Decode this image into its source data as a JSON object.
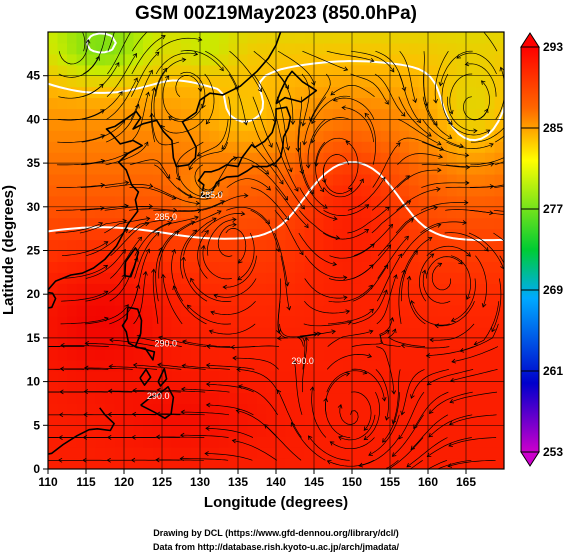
{
  "chart_data": {
    "type": "heatmap",
    "title": "GSM 00Z19May2023 (850.0hPa)",
    "xlabel": "Longitude (degrees)",
    "ylabel": "Latitude (degrees)",
    "xlim": [
      110,
      170
    ],
    "ylim": [
      0,
      50
    ],
    "xticks": [
      110,
      115,
      120,
      125,
      130,
      135,
      140,
      145,
      150,
      155,
      160,
      165
    ],
    "yticks": [
      0,
      5,
      10,
      15,
      20,
      25,
      30,
      35,
      40,
      45
    ],
    "colorbar": {
      "min": 253,
      "max": 293,
      "ticks": [
        253,
        261,
        269,
        277,
        285,
        293
      ],
      "colors": [
        "#cc00cc",
        "#0000cc",
        "#00aaff",
        "#00cc33",
        "#ffff00",
        "#ff6600",
        "#ff0000"
      ]
    },
    "contour_labels": [
      {
        "text": "285.0",
        "lon": 125.5,
        "lat": 28.5
      },
      {
        "text": "285.0",
        "lon": 131.5,
        "lat": 31.0
      },
      {
        "text": "290.0",
        "lon": 125.5,
        "lat": 14.0
      },
      {
        "text": "290.0",
        "lon": 124.5,
        "lat": 8.0
      },
      {
        "text": "290.0",
        "lon": 143.5,
        "lat": 12.0
      }
    ],
    "fields": "850hPa temperature (K) shaded, white isotherms, black wind streamlines, coastlines"
  },
  "footer": {
    "line1": "Drawing by DCL (https://www.gfd-dennou.org/library/dcl/)",
    "line2": "Data from http://database.rish.kyoto-u.ac.jp/arch/jmadata/"
  }
}
